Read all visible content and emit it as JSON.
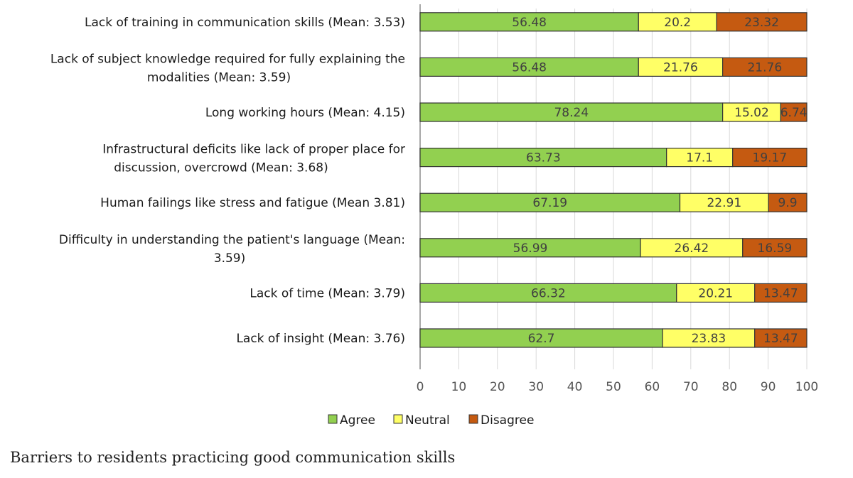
{
  "chart_data": {
    "type": "bar",
    "orientation": "horizontal",
    "stacked": true,
    "categories": [
      "Lack of training in communication skills (Mean: 3.53)",
      "Lack of subject knowledge required for fully explaining the modalities (Mean: 3.59)",
      "Long working hours (Mean: 4.15)",
      "Infrastructural deficits like lack of proper place for discussion, overcrowd (Mean: 3.68)",
      "Human failings like stress and fatigue (Mean 3.81)",
      "Difficulty in understanding the patient's language (Mean: 3.59)",
      "Lack of time (Mean: 3.79)",
      "Lack of insight (Mean: 3.76)"
    ],
    "category_lines": [
      [
        "Lack of training in communication skills (Mean: 3.53)"
      ],
      [
        "Lack of subject knowledge required for fully explaining the",
        "modalities (Mean: 3.59)"
      ],
      [
        "Long working hours (Mean: 4.15)"
      ],
      [
        "Infrastructural deficits like lack of proper place for",
        "discussion, overcrowd (Mean: 3.68)"
      ],
      [
        "Human failings like stress and fatigue (Mean 3.81)"
      ],
      [
        "Difficulty in understanding the patient's language (Mean:",
        "3.59)"
      ],
      [
        "Lack of time (Mean: 3.79)"
      ],
      [
        "Lack of insight (Mean: 3.76)"
      ]
    ],
    "series": [
      {
        "name": "Agree",
        "color": "#92d050",
        "values": [
          56.48,
          56.48,
          78.24,
          63.73,
          67.19,
          56.99,
          66.32,
          62.7
        ]
      },
      {
        "name": "Neutral",
        "color": "#ffff66",
        "values": [
          20.2,
          21.76,
          15.02,
          17.1,
          22.91,
          26.42,
          20.21,
          23.83
        ]
      },
      {
        "name": "Disagree",
        "color": "#c55a11",
        "values": [
          23.32,
          21.76,
          6.74,
          19.17,
          9.9,
          16.59,
          13.47,
          13.47
        ]
      }
    ],
    "value_labels": [
      [
        "56.48",
        "20.2",
        "23.32"
      ],
      [
        "56.48",
        "21.76",
        "21.76"
      ],
      [
        "78.24",
        "15.02",
        "6.74"
      ],
      [
        "63.73",
        "17.1",
        "19.17"
      ],
      [
        "67.19",
        "22.91",
        "9.9"
      ],
      [
        "56.99",
        "26.42",
        "16.59"
      ],
      [
        "66.32",
        "20.21",
        "13.47"
      ],
      [
        "62.7",
        "23.83",
        "13.47"
      ]
    ],
    "xlim": [
      0,
      100
    ],
    "xticks": [
      0,
      10,
      20,
      30,
      40,
      50,
      60,
      70,
      80,
      90,
      100
    ],
    "grid": true,
    "legend": "bottom",
    "title": "",
    "xlabel": "",
    "ylabel": ""
  },
  "caption": "Barriers to residents practicing good communication skills"
}
